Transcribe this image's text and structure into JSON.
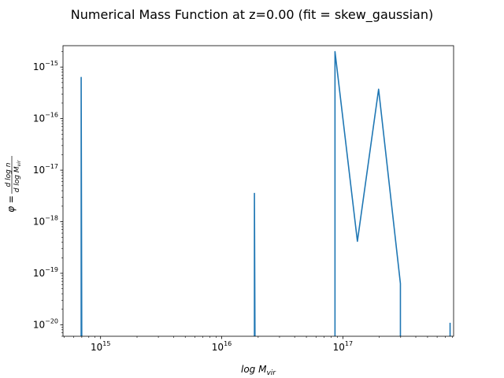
{
  "chart_data": {
    "type": "line",
    "title": "Numerical Mass Function at z=0.00 (fit = skew_gaussian)",
    "xlabel": "log M",
    "xlabel_sub": "vir",
    "ylabel_phi": "φ =",
    "ylabel_num": "d log n",
    "ylabel_den": "d log M",
    "ylabel_den_sub": "vir",
    "xscale": "log",
    "yscale": "log",
    "xlim": [
      490000000000000.0,
      8.2e+16
    ],
    "ylim": [
      6e-21,
      2.6e-15
    ],
    "xlim_exp": [
      14.69,
      17.914
    ],
    "ylim_exp": [
      -20.222,
      -14.585
    ],
    "grid": false,
    "legend": "none",
    "x_major_ticks": [
      {
        "exp": 15,
        "label": "10",
        "sup": "15"
      },
      {
        "exp": 16,
        "label": "10",
        "sup": "16"
      },
      {
        "exp": 17,
        "label": "10",
        "sup": "17"
      }
    ],
    "y_major_ticks": [
      {
        "exp": -15,
        "label": "10",
        "sup": "−15"
      },
      {
        "exp": -16,
        "label": "10",
        "sup": "−16"
      },
      {
        "exp": -17,
        "label": "10",
        "sup": "−17"
      },
      {
        "exp": -18,
        "label": "10",
        "sup": "−18"
      },
      {
        "exp": -19,
        "label": "10",
        "sup": "−19"
      },
      {
        "exp": -20,
        "label": "10",
        "sup": "−20"
      }
    ],
    "series": [
      {
        "color": "#1f77b4",
        "points_exp": [
          [
            14.84,
            -20.5
          ],
          [
            14.84,
            -15.2
          ],
          [
            14.845,
            -20.5
          ],
          [
            16.27,
            -20.5
          ],
          [
            16.27,
            -17.45
          ],
          [
            16.275,
            -20.5
          ],
          [
            16.935,
            -20.5
          ],
          [
            16.935,
            -14.7
          ],
          [
            17.12,
            -18.38
          ],
          [
            17.295,
            -15.43
          ],
          [
            17.475,
            -19.2
          ],
          [
            17.475,
            -20.5
          ],
          [
            17.885,
            -20.5
          ],
          [
            17.885,
            -19.96
          ]
        ]
      }
    ]
  }
}
